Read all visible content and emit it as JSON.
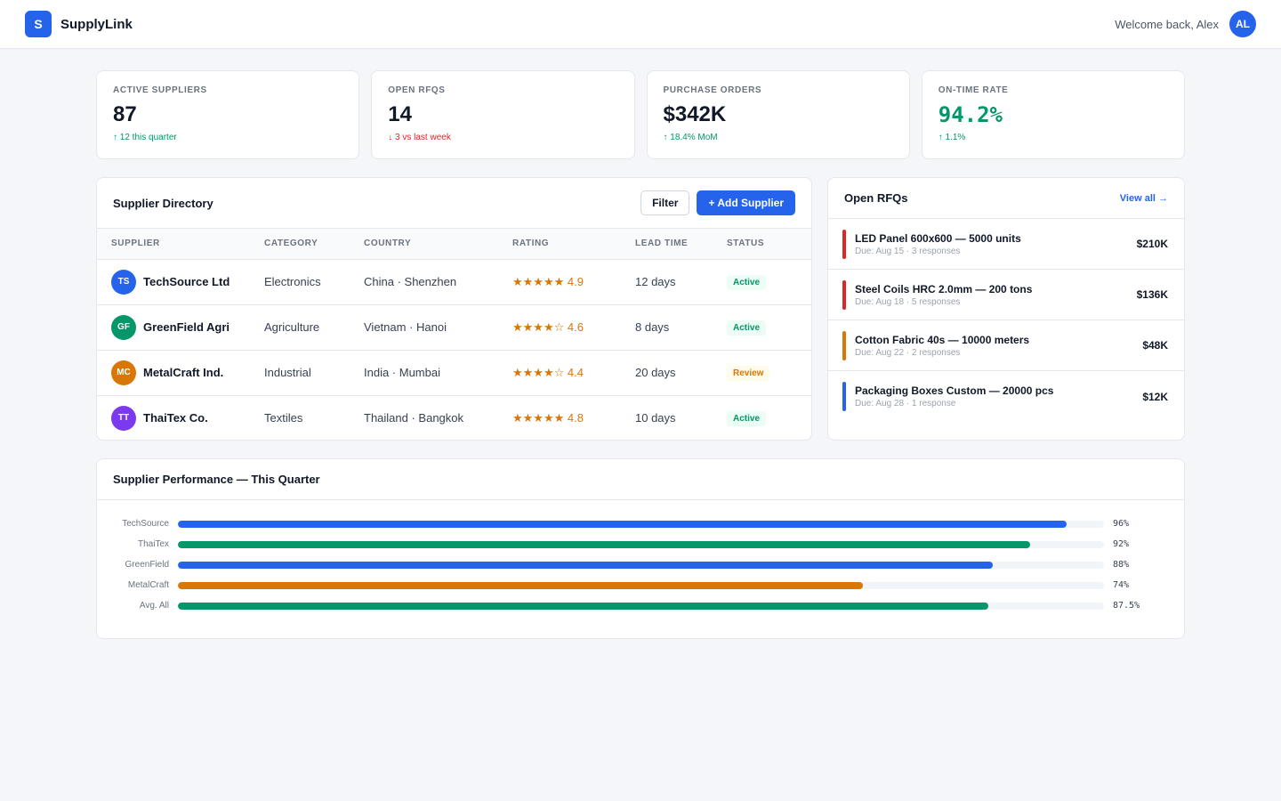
{
  "app": {
    "logo_letter": "S",
    "name": "SupplyLink"
  },
  "user": {
    "welcome": "Welcome back, Alex",
    "initials": "AL"
  },
  "kpis": [
    {
      "label": "Active Suppliers",
      "value": "87",
      "delta": "↑ 12 this quarter",
      "trend": "up"
    },
    {
      "label": "Open RFQs",
      "value": "14",
      "delta": "↓ 3 vs last week",
      "trend": "down"
    },
    {
      "label": "Purchase Orders",
      "value": "$342K",
      "delta": "↑ 18.4% MoM",
      "trend": "up"
    },
    {
      "label": "On-Time Rate",
      "value": "94.2%",
      "delta": "↑ 1.1%",
      "trend": "up",
      "value_color": "#059669"
    }
  ],
  "directory": {
    "title": "Supplier Directory",
    "filter_label": "Filter",
    "add_label": "+ Add Supplier",
    "columns": [
      "Supplier",
      "Category",
      "Country",
      "Rating",
      "Lead Time",
      "Status"
    ],
    "rows": [
      {
        "initials": "TS",
        "avatar_color": "#2563eb",
        "name": "TechSource Ltd",
        "category": "Electronics",
        "country": "China · Shenzhen",
        "stars": "★★★★★",
        "rating": "4.9",
        "lead_time": "12 days",
        "status": "Active"
      },
      {
        "initials": "GF",
        "avatar_color": "#059669",
        "name": "GreenField Agri",
        "category": "Agriculture",
        "country": "Vietnam · Hanoi",
        "stars": "★★★★☆",
        "rating": "4.6",
        "lead_time": "8 days",
        "status": "Active"
      },
      {
        "initials": "MC",
        "avatar_color": "#d97706",
        "name": "MetalCraft Ind.",
        "category": "Industrial",
        "country": "India · Mumbai",
        "stars": "★★★★☆",
        "rating": "4.4",
        "lead_time": "20 days",
        "status": "Review"
      },
      {
        "initials": "TT",
        "avatar_color": "#7c3aed",
        "name": "ThaiTex Co.",
        "category": "Textiles",
        "country": "Thailand · Bangkok",
        "stars": "★★★★★",
        "rating": "4.8",
        "lead_time": "10 days",
        "status": "Active"
      }
    ]
  },
  "rfqs": {
    "title": "Open RFQs",
    "view_all": "View all →",
    "items": [
      {
        "title": "LED Panel 600x600 — 5000 units",
        "meta": "Due: Aug 15 · 3 responses",
        "amount": "$210K",
        "color": "#dc2626"
      },
      {
        "title": "Steel Coils HRC 2.0mm — 200 tons",
        "meta": "Due: Aug 18 · 5 responses",
        "amount": "$136K",
        "color": "#dc2626"
      },
      {
        "title": "Cotton Fabric 40s — 10000 meters",
        "meta": "Due: Aug 22 · 2 responses",
        "amount": "$48K",
        "color": "#d97706"
      },
      {
        "title": "Packaging Boxes Custom — 20000 pcs",
        "meta": "Due: Aug 28 · 1 response",
        "amount": "$12K",
        "color": "#2563eb"
      }
    ]
  },
  "performance": {
    "title": "Supplier Performance — This Quarter",
    "rows": [
      {
        "label": "TechSource",
        "value": 96,
        "display": "96%",
        "color": "#2563eb"
      },
      {
        "label": "ThaiTex",
        "value": 92,
        "display": "92%",
        "color": "#059669"
      },
      {
        "label": "GreenField",
        "value": 88,
        "display": "88%",
        "color": "#2563eb"
      },
      {
        "label": "MetalCraft",
        "value": 74,
        "display": "74%",
        "color": "#d97706"
      },
      {
        "label": "Avg. All",
        "value": 87.5,
        "display": "87.5%",
        "color": "#059669"
      }
    ]
  }
}
